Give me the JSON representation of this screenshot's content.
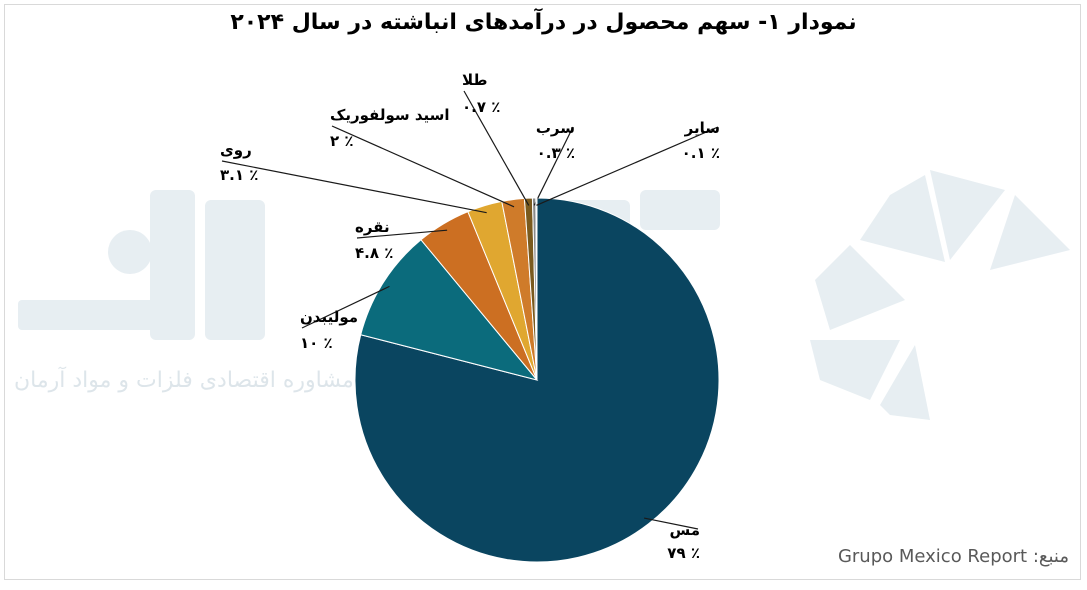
{
  "chart_data": {
    "type": "pie",
    "title": "نمودار ۱- سهم محصول در درآمدهای انباشته در سال ۲۰۲۴",
    "slices": [
      {
        "label": "مس",
        "value": 79,
        "value_label": "٪ ۷۹",
        "color": "#0a4560"
      },
      {
        "label": "مولیبدن",
        "value": 10,
        "value_label": "٪ ۱۰",
        "color": "#0b6b7c"
      },
      {
        "label": "نقره",
        "value": 4.8,
        "value_label": "٪ ۴.۸",
        "color": "#cc6f22"
      },
      {
        "label": "روی",
        "value": 3.1,
        "value_label": "٪ ۳.۱",
        "color": "#e0a730"
      },
      {
        "label": "اسید سولفوریک",
        "value": 2,
        "value_label": "٪ ۲",
        "color": "#cf7b2a"
      },
      {
        "label": "طلا",
        "value": 0.7,
        "value_label": "٪ ۰.۷",
        "color": "#7a5a1e"
      },
      {
        "label": "سرب",
        "value": 0.3,
        "value_label": "٪ ۰.۳",
        "color": "#8a8a8a"
      },
      {
        "label": "سایر",
        "value": 0.1,
        "value_label": "٪ ۰.۱",
        "color": "#a9c1cc"
      }
    ],
    "legend": "none"
  },
  "source": {
    "prefix": "منبع:",
    "name": "Grupo Mexico Report"
  },
  "watermark": {
    "text": "مشاوره اقتصادی فلزات و مواد آرمان"
  }
}
